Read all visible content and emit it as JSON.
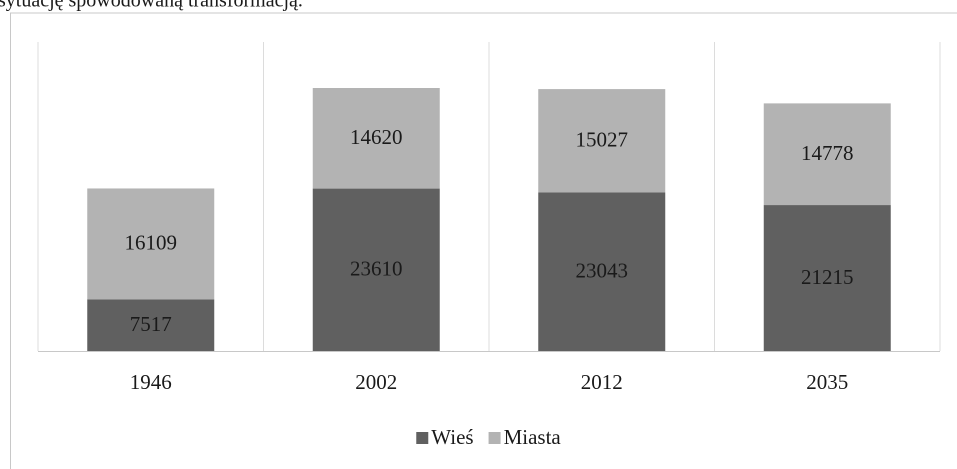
{
  "header": {
    "text": "sytuację spowodowaną transformacją."
  },
  "chart_data": {
    "type": "bar",
    "stacked": true,
    "categories": [
      "1946",
      "2002",
      "2012",
      "2035"
    ],
    "series": [
      {
        "name": "Wieś",
        "color": "#606060",
        "values": [
          7517,
          23610,
          23043,
          21215
        ]
      },
      {
        "name": "Miasta",
        "color": "#b3b3b3",
        "values": [
          16109,
          14620,
          15027,
          14778
        ]
      }
    ],
    "legend": "bottom"
  }
}
